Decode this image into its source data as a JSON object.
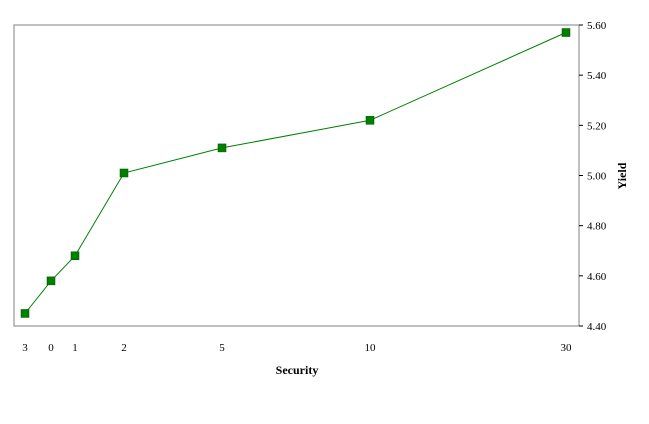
{
  "chart_data": {
    "type": "line",
    "title": "",
    "xlabel": "Security",
    "ylabel": "Yield",
    "categories": [
      "3",
      "0",
      "1",
      "2",
      "5",
      "10",
      "30"
    ],
    "series": [
      {
        "values": [
          4.45,
          4.58,
          4.68,
          5.01,
          5.11,
          5.22,
          5.57
        ]
      }
    ],
    "ylim": [
      4.4,
      5.6
    ],
    "yticks": [
      "4.40",
      "4.60",
      "4.80",
      "5.00",
      "5.20",
      "5.40",
      "5.60"
    ],
    "y_axis_side": "right",
    "grid": false,
    "legend": "none",
    "line_color": "#008000",
    "marker_color": "#008000",
    "marker": "square"
  }
}
